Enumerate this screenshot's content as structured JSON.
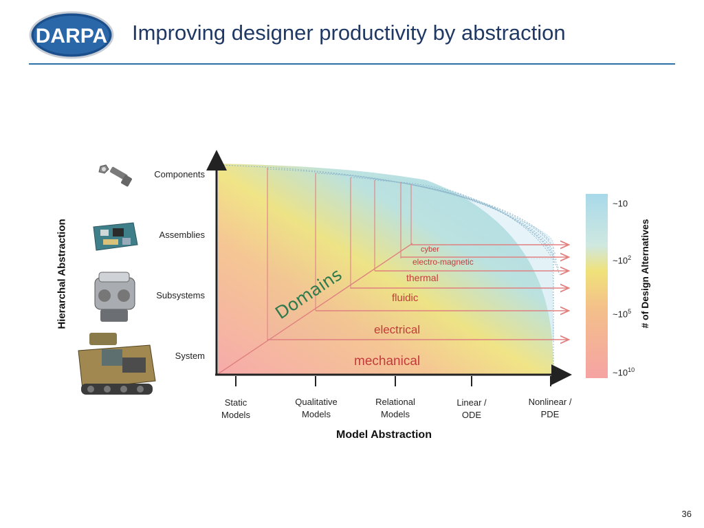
{
  "header": {
    "logo_text": "DARPA",
    "title": "Improving designer productivity by abstraction"
  },
  "diagram": {
    "y_axis_title": "Hierarchal Abstraction",
    "x_axis_title": "Model Abstraction",
    "right_axis_title": "# of Design Alternatives",
    "hierarchy_levels": [
      "Components",
      "Assemblies",
      "Subsystems",
      "System"
    ],
    "model_levels": [
      {
        "line1": "Static",
        "line2": "Models"
      },
      {
        "line1": "Qualitative",
        "line2": "Models"
      },
      {
        "line1": "Relational",
        "line2": "Models"
      },
      {
        "line1": "Linear /",
        "line2": "ODE"
      },
      {
        "line1": "Nonlinear /",
        "line2": "PDE"
      }
    ],
    "domains_label": "Domains",
    "domains": [
      "cyber",
      "electro-magnetic",
      "thermal",
      "fluidic",
      "electrical",
      "mechanical"
    ],
    "scale": [
      {
        "base": "~10",
        "exp": ""
      },
      {
        "base": "~10",
        "exp": "2"
      },
      {
        "base": "~10",
        "exp": "5"
      },
      {
        "base": "~10",
        "exp": "10"
      }
    ],
    "colors": {
      "low": "#f5a3a3",
      "mid": "#f0e27a",
      "high": "#a8d9ea",
      "domain_text": "#c23b3b",
      "domains_label": "#2e7a4c",
      "arrow": "#e08080"
    }
  },
  "footer": {
    "page_number": "36"
  }
}
